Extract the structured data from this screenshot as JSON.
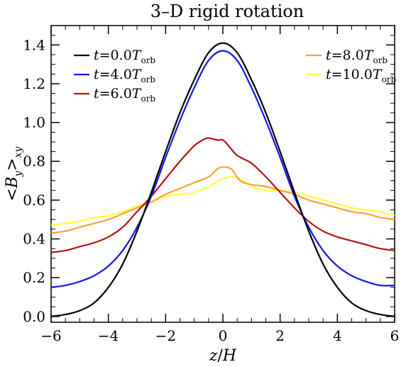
{
  "chart_data": {
    "type": "line",
    "title": "3–D rigid rotation",
    "xlabel": {
      "var": "z",
      "sep": "/",
      "unit": "H"
    },
    "ylabel": {
      "open": "<",
      "var": "B",
      "var_sub": "y",
      "close": ">",
      "sub": "xy"
    },
    "xlim": [
      -6,
      6
    ],
    "ylim": [
      -0.03,
      1.5
    ],
    "xticks": [
      -6,
      -4,
      -2,
      0,
      2,
      4,
      6
    ],
    "xtick_labels": [
      "−6",
      "−4",
      "−2",
      "0",
      "2",
      "4",
      "6"
    ],
    "yticks": [
      0.0,
      0.2,
      0.4,
      0.6,
      0.8,
      1.0,
      1.2,
      1.4
    ],
    "ytick_labels": [
      "0.0",
      "0.2",
      "0.4",
      "0.6",
      "0.8",
      "1.0",
      "1.2",
      "1.4"
    ],
    "grid": false,
    "legend": {
      "placement": "top-left and top-right",
      "columns": 2
    },
    "series": [
      {
        "name": "t=0.0Torb",
        "label": {
          "var": "t",
          "eq": "=0.0",
          "T": "T",
          "sub": "orb"
        },
        "color": "#000000",
        "x": [
          -6,
          -5.5,
          -5,
          -4.5,
          -4,
          -3.5,
          -3,
          -2.5,
          -2,
          -1.5,
          -1,
          -0.5,
          0,
          0.5,
          1,
          1.5,
          2,
          2.5,
          3,
          3.5,
          4,
          4.5,
          5,
          5.5,
          6
        ],
        "y": [
          0.0,
          0.01,
          0.03,
          0.07,
          0.15,
          0.27,
          0.44,
          0.64,
          0.85,
          1.05,
          1.22,
          1.36,
          1.41,
          1.36,
          1.22,
          1.05,
          0.85,
          0.64,
          0.44,
          0.27,
          0.15,
          0.07,
          0.03,
          0.01,
          0.0
        ]
      },
      {
        "name": "t=4.0Torb",
        "label": {
          "var": "t",
          "eq": "=4.0",
          "T": "T",
          "sub": "orb"
        },
        "color": "#1414e6",
        "x": [
          -6,
          -5.5,
          -5,
          -4.5,
          -4,
          -3.5,
          -3,
          -2.5,
          -2,
          -1.5,
          -1,
          -0.5,
          0,
          0.5,
          1,
          1.5,
          2,
          2.5,
          3,
          3.5,
          4,
          4.5,
          5,
          5.5,
          6
        ],
        "y": [
          0.15,
          0.16,
          0.18,
          0.21,
          0.26,
          0.34,
          0.46,
          0.62,
          0.82,
          1.01,
          1.18,
          1.32,
          1.37,
          1.32,
          1.18,
          1.01,
          0.82,
          0.62,
          0.46,
          0.34,
          0.26,
          0.21,
          0.18,
          0.16,
          0.16
        ]
      },
      {
        "name": "t=6.0Torb",
        "label": {
          "var": "t",
          "eq": "=6.0",
          "T": "T",
          "sub": "orb"
        },
        "color": "#b31414",
        "x": [
          -6,
          -5.5,
          -5,
          -4.5,
          -4,
          -3.5,
          -3,
          -2.5,
          -2,
          -1.5,
          -1,
          -0.7,
          -0.5,
          -0.2,
          0,
          0.2,
          0.5,
          1,
          1.5,
          2,
          2.5,
          3,
          3.5,
          4,
          4.5,
          5,
          5.5,
          6
        ],
        "y": [
          0.33,
          0.34,
          0.36,
          0.38,
          0.41,
          0.46,
          0.54,
          0.62,
          0.71,
          0.8,
          0.88,
          0.91,
          0.92,
          0.91,
          0.91,
          0.88,
          0.83,
          0.79,
          0.72,
          0.64,
          0.56,
          0.49,
          0.44,
          0.41,
          0.39,
          0.37,
          0.35,
          0.34
        ]
      },
      {
        "name": "t=8.0Torb",
        "label": {
          "var": "t",
          "eq": "=8.0",
          "T": "T",
          "sub": "orb"
        },
        "color": "#ffa03c",
        "x": [
          -6,
          -5.5,
          -5,
          -4.5,
          -4,
          -3.5,
          -3,
          -2.5,
          -2,
          -1.5,
          -1,
          -0.5,
          -0.2,
          0,
          0.3,
          0.6,
          1,
          1.5,
          2,
          2.5,
          3,
          3.5,
          4,
          4.5,
          5,
          5.5,
          6
        ],
        "y": [
          0.43,
          0.44,
          0.46,
          0.48,
          0.5,
          0.53,
          0.56,
          0.59,
          0.63,
          0.66,
          0.69,
          0.72,
          0.76,
          0.77,
          0.76,
          0.7,
          0.68,
          0.67,
          0.65,
          0.63,
          0.6,
          0.58,
          0.56,
          0.54,
          0.53,
          0.51,
          0.5
        ]
      },
      {
        "name": "t=10.0Torb",
        "label": {
          "var": "t",
          "eq": "=10.0",
          "T": "T",
          "sub": "orb"
        },
        "color": "#ffff3c",
        "x": [
          -6,
          -5.5,
          -5,
          -4.5,
          -4,
          -3.5,
          -3,
          -2.5,
          -2,
          -1.5,
          -1,
          -0.5,
          0,
          0.3,
          0.6,
          1,
          1.5,
          2,
          2.5,
          3,
          3.5,
          4,
          4.5,
          5,
          5.5,
          6
        ],
        "y": [
          0.47,
          0.48,
          0.49,
          0.51,
          0.52,
          0.54,
          0.57,
          0.59,
          0.62,
          0.63,
          0.64,
          0.67,
          0.71,
          0.72,
          0.71,
          0.67,
          0.65,
          0.65,
          0.64,
          0.62,
          0.6,
          0.58,
          0.56,
          0.55,
          0.54,
          0.52
        ]
      }
    ]
  }
}
